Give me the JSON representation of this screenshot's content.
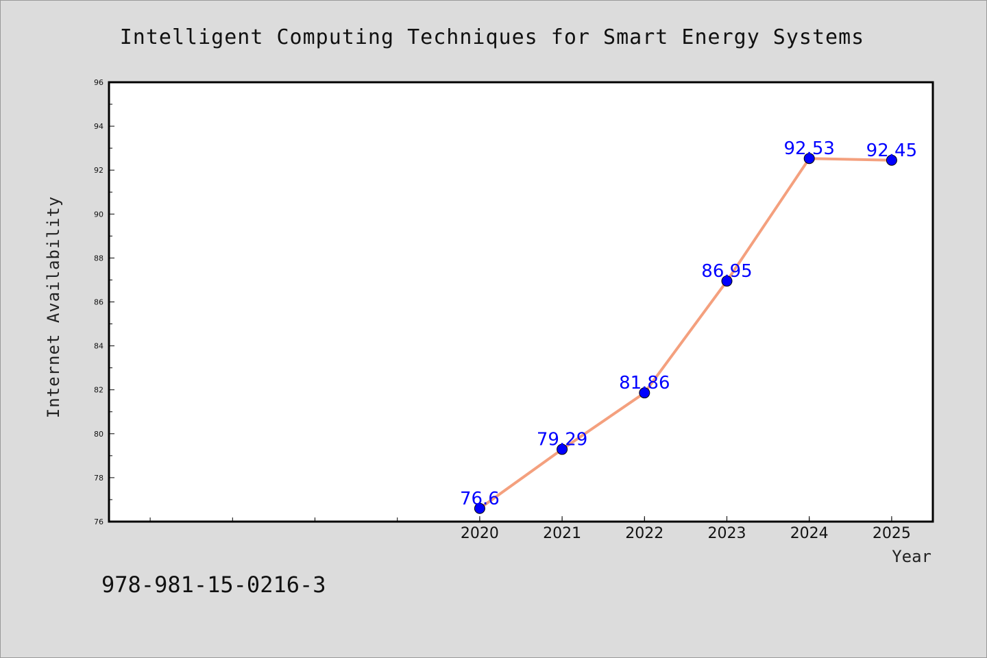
{
  "chart_data": {
    "type": "line",
    "title": "Intelligent Computing Techniques for Smart Energy Systems",
    "xlabel": "Year",
    "ylabel": "Internet Availability",
    "x": [
      "2020",
      "2021",
      "2022",
      "2023",
      "2024",
      "2025"
    ],
    "series": [
      {
        "values": [
          76.6,
          79.29,
          81.86,
          86.95,
          92.53,
          92.45
        ],
        "labels": [
          "76.6",
          "79.29",
          "81.86",
          "86.95",
          "92.53",
          "92.45"
        ],
        "line_color": "#f4a07e",
        "marker_color": "#0000ff"
      }
    ],
    "ylim": [
      76,
      96
    ],
    "yticks": [
      "76",
      "78",
      "80",
      "82",
      "84",
      "86",
      "88",
      "90",
      "92",
      "94",
      "96"
    ],
    "xlim": [
      2015.5,
      2025.5
    ],
    "grid": false,
    "legend": "none",
    "annotation_color": "#0000ff",
    "annotation": "978-981-15-0216-3",
    "background": "#dcdcdc",
    "plot_background": "#ffffff"
  }
}
